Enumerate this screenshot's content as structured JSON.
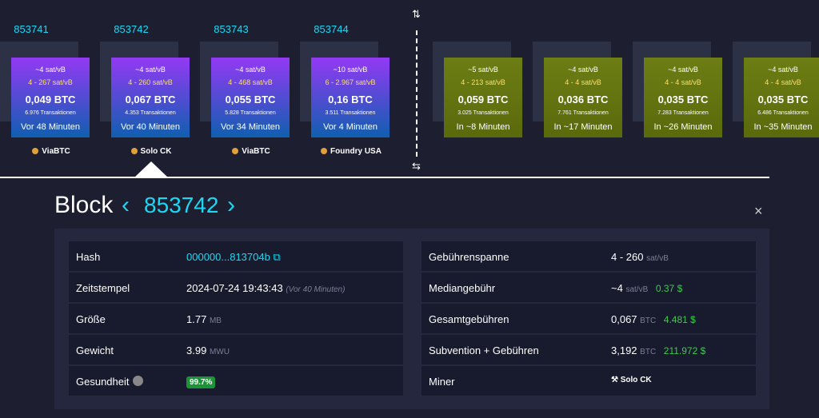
{
  "mined_blocks": [
    {
      "height": "853741",
      "fee_median": "~4 sat/vB",
      "fee_range": "4 - 267 sat/vB",
      "size": "0,049 BTC",
      "transactions": "6.976 Transaktionen",
      "time": "Vor 48 Minuten",
      "miner": "ViaBTC"
    },
    {
      "height": "853742",
      "fee_median": "~4 sat/vB",
      "fee_range": "4 - 260 sat/vB",
      "size": "0,067 BTC",
      "transactions": "4.353 Transaktionen",
      "time": "Vor 40 Minuten",
      "miner": "Solo CK"
    },
    {
      "height": "853743",
      "fee_median": "~4 sat/vB",
      "fee_range": "4 - 468 sat/vB",
      "size": "0,055 BTC",
      "transactions": "5.828 Transaktionen",
      "time": "Vor 34 Minuten",
      "miner": "ViaBTC"
    },
    {
      "height": "853744",
      "fee_median": "~10 sat/vB",
      "fee_range": "6 - 2.967 sat/vB",
      "size": "0,16 BTC",
      "transactions": "3.511 Transaktionen",
      "time": "Vor 4 Minuten",
      "miner": "Foundry USA"
    }
  ],
  "pending_blocks": [
    {
      "fee_median": "~5 sat/vB",
      "fee_range": "4 - 213 sat/vB",
      "size": "0,059 BTC",
      "transactions": "3.025 Transaktionen",
      "time": "In ~8 Minuten"
    },
    {
      "fee_median": "~4 sat/vB",
      "fee_range": "4 - 4 sat/vB",
      "size": "0,036 BTC",
      "transactions": "7.761 Transaktionen",
      "time": "In ~17 Minuten"
    },
    {
      "fee_median": "~4 sat/vB",
      "fee_range": "4 - 4 sat/vB",
      "size": "0,035 BTC",
      "transactions": "7.283 Transaktionen",
      "time": "In ~26 Minuten"
    },
    {
      "fee_median": "~4 sat/vB",
      "fee_range": "4 - 4 sat/vB",
      "size": "0,035 BTC",
      "transactions": "6.486 Transaktionen",
      "time": "In ~35 Minuten"
    }
  ],
  "detail": {
    "title": "Block",
    "height": "853742",
    "left_rows": [
      {
        "label": "Hash",
        "value": "000000...813704b"
      },
      {
        "label": "Zeitstempel",
        "value": "2024-07-24 19:43:43",
        "note": "(Vor 40 Minuten)"
      },
      {
        "label": "Größe",
        "value": "1.77",
        "unit": "MB"
      },
      {
        "label": "Gewicht",
        "value": "3.99",
        "unit": "MWU"
      },
      {
        "label": "Gesundheit",
        "badge": "99.7%"
      }
    ],
    "right_rows": [
      {
        "label": "Gebührenspanne",
        "value": "4 - 260",
        "unit": "sat/vB"
      },
      {
        "label": "Mediangebühr",
        "value": "~4",
        "unit": "sat/vB",
        "fiat": "0.37 $"
      },
      {
        "label": "Gesamtgebühren",
        "value": "0,067",
        "unit": "BTC",
        "fiat": "4.481 $"
      },
      {
        "label": "Subvention + Gebühren",
        "value": "3,192",
        "unit": "BTC",
        "fiat": "211.972 $"
      },
      {
        "label": "Miner",
        "miner": "Solo CK"
      }
    ]
  }
}
